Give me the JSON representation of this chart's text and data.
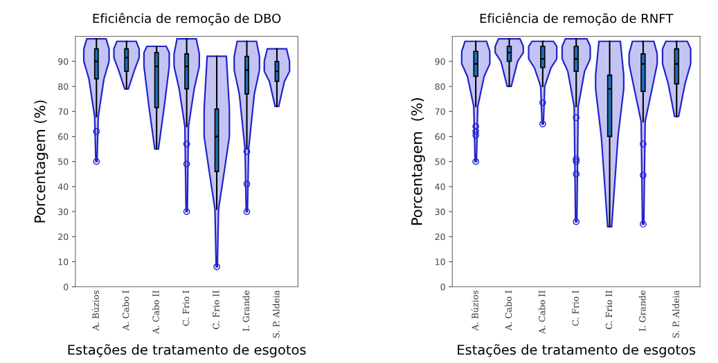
{
  "chart_data": [
    {
      "type": "box",
      "title": "Eficiência de remoção de DBO",
      "xlabel": "Estações de tratamento de esgotos",
      "ylabel": "Porcentagem (%)",
      "categories": [
        "A. Búzios",
        "A. Cabo I",
        "A. Cabo II",
        "C. Frio I",
        "C. Frio II",
        "I. Grande",
        "S. P. Aldeia"
      ],
      "color": "#1f6fb4",
      "boxes": [
        {
          "low": 68,
          "q1": 83,
          "median": 90,
          "q3": 95,
          "high": 99,
          "outliers": [
            62,
            50
          ]
        },
        {
          "low": 79,
          "q1": 86,
          "median": 91.5,
          "q3": 95,
          "high": 98
        },
        {
          "low": 55,
          "q1": 71.5,
          "median": 88,
          "q3": 93.5,
          "high": 96
        },
        {
          "low": 64,
          "q1": 79,
          "median": 88,
          "q3": 93,
          "high": 99,
          "outliers": [
            57,
            49,
            30
          ]
        },
        {
          "low": 31,
          "q1": 46,
          "median": 60,
          "q3": 71,
          "high": 92,
          "outliers": [
            8
          ]
        },
        {
          "low": 55,
          "q1": 77,
          "median": 86.5,
          "q3": 92,
          "high": 98,
          "outliers": [
            54,
            41,
            30
          ]
        },
        {
          "low": 72,
          "q1": 82,
          "median": 86,
          "q3": 90,
          "high": 95
        }
      ],
      "ylim": [
        0,
        100
      ],
      "yticks": [
        0,
        10,
        20,
        30,
        40,
        50,
        60,
        70,
        80,
        90
      ],
      "grid": false
    },
    {
      "type": "box",
      "title": "Eficiência de remoção de RNFT",
      "xlabel": "Estações de tratamento de esgotos",
      "ylabel": "Porcentagem  (%)",
      "categories": [
        "A. Búzios",
        "A. Cabo I",
        "A. Cabo II",
        "C. Frio I",
        "C. Frio II",
        "I. Grande",
        "S. P. Aldeia"
      ],
      "color": "#1f6fb4",
      "boxes": [
        {
          "low": 72,
          "q1": 84,
          "median": 89,
          "q3": 94,
          "high": 98,
          "outliers": [
            64,
            62,
            60.5,
            50
          ]
        },
        {
          "low": 80,
          "q1": 90,
          "median": 93.5,
          "q3": 96,
          "high": 99
        },
        {
          "low": 80,
          "q1": 87.5,
          "median": 91,
          "q3": 96,
          "high": 98,
          "outliers": [
            73.5,
            65
          ]
        },
        {
          "low": 72,
          "q1": 86,
          "median": 91,
          "q3": 96,
          "high": 99,
          "outliers": [
            67.5,
            51,
            50,
            45,
            26
          ]
        },
        {
          "low": 24,
          "q1": 60,
          "median": 79,
          "q3": 84.5,
          "high": 98
        },
        {
          "low": 66,
          "q1": 78,
          "median": 89,
          "q3": 93,
          "high": 98,
          "outliers": [
            57,
            44.5,
            25
          ]
        },
        {
          "low": 68,
          "q1": 81,
          "median": 89,
          "q3": 95,
          "high": 98
        }
      ],
      "ylim": [
        0,
        100
      ],
      "yticks": [
        0,
        10,
        20,
        30,
        40,
        50,
        60,
        70,
        80,
        90
      ],
      "grid": false
    }
  ]
}
